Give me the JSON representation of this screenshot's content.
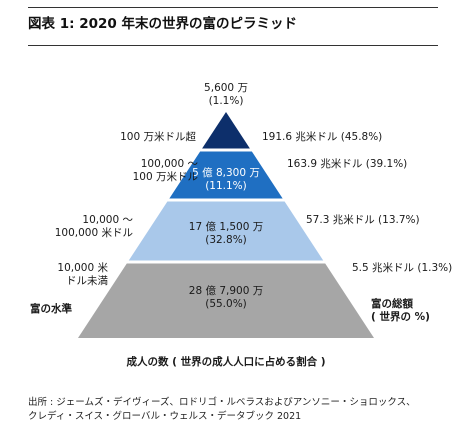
{
  "title": "図表 1: 2020 年末の世界の富のピラミッド",
  "chart_data": {
    "type": "pyramid",
    "x_axis_label": "成人の数 ( 世界の成人人口に占める割合 )",
    "left_axis_label": "富の水準",
    "right_axis_label_line1": "富の総額",
    "right_axis_label_line2": "( 世界の %)",
    "tiers": [
      {
        "wealth_band": [
          "100 万米ドル超"
        ],
        "adults": "5,600 万",
        "adult_share": "(1.1%)",
        "adult_share_pct": 1.1,
        "total_wealth": "191.6 兆米ドル (45.8%)",
        "total_wealth_trillion_usd": 191.6,
        "wealth_share_pct": 45.8,
        "color": "#0d2f6b"
      },
      {
        "wealth_band": [
          "100,000 ～",
          "100 万米ドル"
        ],
        "adults": "5 億 8,300 万",
        "adult_share": "(11.1%)",
        "adult_share_pct": 11.1,
        "total_wealth": "163.9 兆米ドル (39.1%)",
        "total_wealth_trillion_usd": 163.9,
        "wealth_share_pct": 39.1,
        "color": "#1f6fc2"
      },
      {
        "wealth_band": [
          "10,000 ～",
          "100,000 米ドル"
        ],
        "adults": "17 億 1,500 万",
        "adult_share": "(32.8%)",
        "adult_share_pct": 32.8,
        "total_wealth": "57.3 兆米ドル (13.7%)",
        "total_wealth_trillion_usd": 57.3,
        "wealth_share_pct": 13.7,
        "color": "#a9c8ea"
      },
      {
        "wealth_band": [
          "10,000 米",
          "ドル未満"
        ],
        "adults": "28 億 7,900 万",
        "adult_share": "(55.0%)",
        "adult_share_pct": 55.0,
        "total_wealth": "5.5 兆米ドル (1.3%)",
        "total_wealth_trillion_usd": 5.5,
        "wealth_share_pct": 1.3,
        "color": "#a6a6a6"
      }
    ]
  },
  "source_line1": "出所 : ジェームズ・デイヴィーズ、ロドリゴ・ルベラスおよびアンソニー・ショロックス、",
  "source_line2": "クレディ・スイス・グローバル・ウェルス・データブック 2021"
}
